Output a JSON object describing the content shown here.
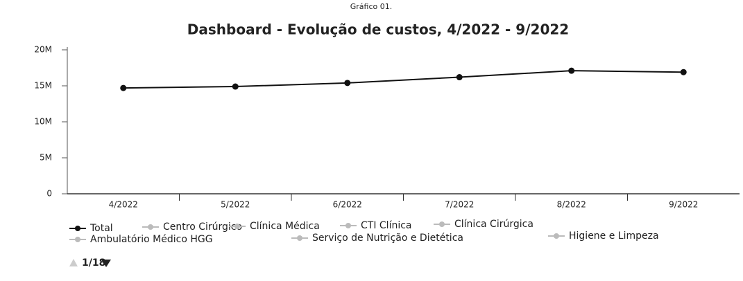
{
  "chart_data": {
    "type": "line",
    "caption": "Gráfico 01.",
    "title": "Dashboard - Evolução de custos, 4/2022 - 9/2022",
    "categories": [
      "4/2022",
      "5/2022",
      "6/2022",
      "7/2022",
      "8/2022",
      "9/2022"
    ],
    "series": [
      {
        "name": "Total",
        "color": "#111111",
        "values": [
          14700000,
          14900000,
          15400000,
          16200000,
          17100000,
          16900000
        ]
      }
    ],
    "hidden_legend": [
      "Centro Cirúrgico",
      "Clínica Médica",
      "CTI Clínica",
      "Clínica Cirúrgica",
      "Ambulatório Médico HGG",
      "Serviço de Nutrição e Dietética",
      "Higiene e Limpeza"
    ],
    "legend_page": "1/18",
    "ylim": [
      0,
      20000000
    ],
    "yticks": [
      0,
      {
        "value": 5000000,
        "label": "5M"
      },
      {
        "value": 10000000,
        "label": "10M"
      },
      {
        "value": 15000000,
        "label": "15M"
      },
      {
        "value": 20000000,
        "label": "20M"
      }
    ]
  }
}
